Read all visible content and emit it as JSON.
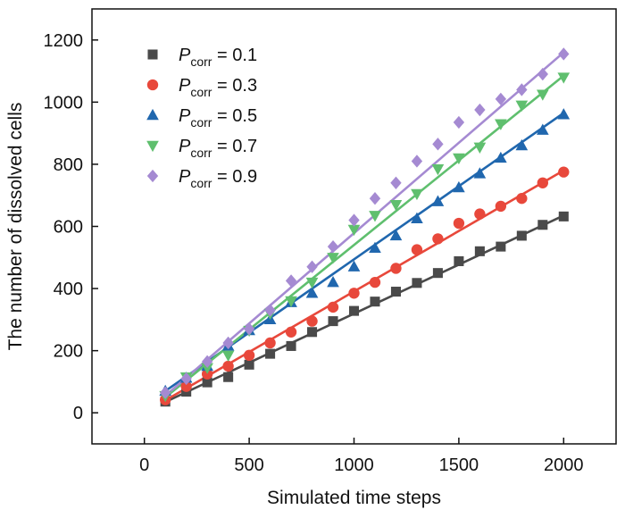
{
  "chart_data": {
    "type": "scatter",
    "xlabel": "Simulated time steps",
    "ylabel": "The number of dissolved cells",
    "xlim": [
      -250,
      2250
    ],
    "ylim": [
      -100,
      1300
    ],
    "x_ticks": [
      0,
      500,
      1000,
      1500,
      2000
    ],
    "y_ticks": [
      0,
      200,
      400,
      600,
      800,
      1000,
      1200
    ],
    "grid": false,
    "legend_position": "top-left",
    "x": [
      100,
      200,
      300,
      400,
      500,
      600,
      700,
      800,
      900,
      1000,
      1100,
      1200,
      1300,
      1400,
      1500,
      1600,
      1700,
      1800,
      1900,
      2000
    ],
    "series": [
      {
        "legend_symbol": "P",
        "legend_subscript": "corr",
        "legend_value": " = 0.1",
        "marker": "square",
        "color": "#4a4a4a",
        "values": [
          36,
          68,
          98,
          115,
          155,
          190,
          215,
          260,
          295,
          328,
          358,
          390,
          418,
          450,
          488,
          520,
          535,
          570,
          605,
          632
        ],
        "fit": [
          [
            100,
            35
          ],
          [
            2000,
            635
          ]
        ]
      },
      {
        "legend_symbol": "P",
        "legend_subscript": "corr",
        "legend_value": " = 0.3",
        "marker": "circle",
        "color": "#e8483b",
        "values": [
          42,
          85,
          125,
          150,
          185,
          225,
          260,
          295,
          340,
          385,
          420,
          465,
          525,
          560,
          610,
          640,
          665,
          690,
          740,
          775
        ],
        "fit": [
          [
            100,
            40
          ],
          [
            2000,
            780
          ]
        ]
      },
      {
        "legend_symbol": "P",
        "legend_subscript": "corr",
        "legend_value": " = 0.5",
        "marker": "triangle-up",
        "color": "#2067ae",
        "values": [
          70,
          112,
          150,
          215,
          265,
          300,
          355,
          385,
          420,
          470,
          530,
          570,
          625,
          680,
          725,
          770,
          820,
          860,
          910,
          960
        ],
        "fit": [
          [
            100,
            70
          ],
          [
            2000,
            965
          ]
        ]
      },
      {
        "legend_symbol": "P",
        "legend_subscript": "corr",
        "legend_value": " = 0.7",
        "marker": "triangle-down",
        "color": "#5fbf6e",
        "values": [
          55,
          115,
          145,
          185,
          265,
          320,
          360,
          420,
          500,
          590,
          635,
          670,
          705,
          785,
          820,
          855,
          930,
          990,
          1025,
          1080
        ],
        "fit": [
          [
            100,
            50
          ],
          [
            2000,
            1085
          ]
        ]
      },
      {
        "legend_symbol": "P",
        "legend_subscript": "corr",
        "legend_value": " = 0.9",
        "marker": "diamond",
        "color": "#a58ad2",
        "values": [
          65,
          110,
          165,
          225,
          270,
          330,
          425,
          470,
          535,
          620,
          690,
          740,
          810,
          865,
          935,
          975,
          1010,
          1040,
          1090,
          1155
        ],
        "fit": [
          [
            100,
            55
          ],
          [
            2000,
            1160
          ]
        ]
      }
    ]
  }
}
